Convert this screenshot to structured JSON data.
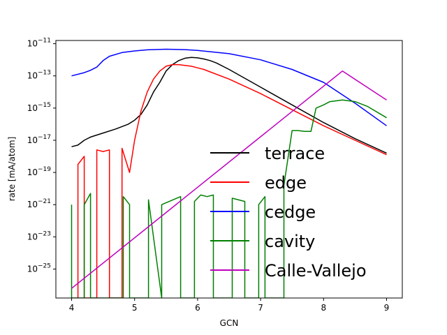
{
  "chart_data": {
    "type": "line",
    "title": "",
    "xlabel": "GCN",
    "ylabel": "rate [mA/atom]",
    "xlim": [
      3.75,
      9.25
    ],
    "ylim_log10": [
      -26.8,
      -10.8
    ],
    "y_scale": "log",
    "grid": false,
    "legend_position": "center-right",
    "x_ticks": [
      {
        "value": 4,
        "label": "4"
      },
      {
        "value": 5,
        "label": "5"
      },
      {
        "value": 6,
        "label": "6"
      },
      {
        "value": 7,
        "label": "7"
      },
      {
        "value": 8,
        "label": "8"
      },
      {
        "value": 9,
        "label": "9"
      }
    ],
    "y_ticks": [
      {
        "exp": -11,
        "label": "10",
        "sup": "−11"
      },
      {
        "exp": -13,
        "label": "10",
        "sup": "−13"
      },
      {
        "exp": -15,
        "label": "10",
        "sup": "−15"
      },
      {
        "exp": -17,
        "label": "10",
        "sup": "−17"
      },
      {
        "exp": -19,
        "label": "10",
        "sup": "−19"
      },
      {
        "exp": -21,
        "label": "10",
        "sup": "−21"
      },
      {
        "exp": -23,
        "label": "10",
        "sup": "−23"
      },
      {
        "exp": -25,
        "label": "10",
        "sup": "−25"
      }
    ],
    "series": [
      {
        "name": "terrace",
        "color": "#000000",
        "points_log10": [
          [
            4.0,
            -17.4
          ],
          [
            4.1,
            -17.3
          ],
          [
            4.2,
            -17.0
          ],
          [
            4.3,
            -16.8
          ],
          [
            4.5,
            -16.55
          ],
          [
            4.7,
            -16.3
          ],
          [
            4.9,
            -16.0
          ],
          [
            5.0,
            -15.75
          ],
          [
            5.1,
            -15.4
          ],
          [
            5.2,
            -14.8
          ],
          [
            5.3,
            -14.0
          ],
          [
            5.4,
            -13.4
          ],
          [
            5.5,
            -12.7
          ],
          [
            5.6,
            -12.3
          ],
          [
            5.7,
            -12.05
          ],
          [
            5.8,
            -11.9
          ],
          [
            5.9,
            -11.85
          ],
          [
            6.0,
            -11.88
          ],
          [
            6.1,
            -11.95
          ],
          [
            6.2,
            -12.05
          ],
          [
            6.3,
            -12.2
          ],
          [
            6.5,
            -12.6
          ],
          [
            7.0,
            -13.7
          ],
          [
            7.5,
            -14.8
          ],
          [
            8.0,
            -15.9
          ],
          [
            8.5,
            -16.9
          ],
          [
            9.0,
            -17.8
          ]
        ]
      },
      {
        "name": "edge",
        "color": "#ff0000",
        "points_log10": [
          [
            4.1,
            -26.8
          ],
          [
            4.1,
            -18.5
          ],
          [
            4.2,
            -18.0
          ],
          [
            4.2,
            -26.8
          ],
          [
            4.4,
            -26.8
          ],
          [
            4.4,
            -17.6
          ],
          [
            4.5,
            -17.7
          ],
          [
            4.6,
            -17.6
          ],
          [
            4.6,
            -26.8
          ],
          [
            4.8,
            -26.8
          ],
          [
            4.8,
            -17.5
          ],
          [
            4.92,
            -19.0
          ],
          [
            5.0,
            -17.0
          ],
          [
            5.1,
            -15.2
          ],
          [
            5.2,
            -14.0
          ],
          [
            5.3,
            -13.2
          ],
          [
            5.4,
            -12.7
          ],
          [
            5.5,
            -12.4
          ],
          [
            5.6,
            -12.3
          ],
          [
            5.7,
            -12.3
          ],
          [
            5.8,
            -12.35
          ],
          [
            5.9,
            -12.4
          ],
          [
            6.0,
            -12.5
          ],
          [
            6.1,
            -12.6
          ],
          [
            6.2,
            -12.75
          ],
          [
            6.5,
            -13.2
          ],
          [
            7.0,
            -14.1
          ],
          [
            7.5,
            -15.1
          ],
          [
            8.0,
            -16.1
          ],
          [
            8.5,
            -17.0
          ],
          [
            9.0,
            -17.9
          ]
        ]
      },
      {
        "name": "cedge",
        "color": "#0000ff",
        "points_log10": [
          [
            4.0,
            -13.0
          ],
          [
            4.2,
            -12.8
          ],
          [
            4.3,
            -12.65
          ],
          [
            4.4,
            -12.45
          ],
          [
            4.5,
            -12.05
          ],
          [
            4.6,
            -11.78
          ],
          [
            4.8,
            -11.55
          ],
          [
            5.0,
            -11.45
          ],
          [
            5.2,
            -11.38
          ],
          [
            5.5,
            -11.34
          ],
          [
            5.8,
            -11.37
          ],
          [
            6.0,
            -11.42
          ],
          [
            6.5,
            -11.62
          ],
          [
            7.0,
            -12.0
          ],
          [
            7.5,
            -12.6
          ],
          [
            8.0,
            -13.4
          ],
          [
            8.5,
            -14.7
          ],
          [
            9.0,
            -16.1
          ]
        ]
      },
      {
        "name": "cavity",
        "color": "#008000",
        "points_log10": [
          [
            4.0,
            -21.0
          ],
          [
            4.0,
            -26.8
          ],
          [
            4.2,
            -26.8
          ],
          [
            4.2,
            -21.0
          ],
          [
            4.3,
            -20.3
          ],
          [
            4.3,
            -26.8
          ],
          [
            4.82,
            -26.8
          ],
          [
            4.82,
            -20.5
          ],
          [
            4.92,
            -21.0
          ],
          [
            4.92,
            -26.8
          ],
          [
            5.22,
            -26.8
          ],
          [
            5.22,
            -20.7
          ],
          [
            5.43,
            -26.8
          ],
          [
            5.43,
            -21.0
          ],
          [
            5.73,
            -20.5
          ],
          [
            5.73,
            -26.8
          ],
          [
            5.95,
            -26.8
          ],
          [
            5.95,
            -20.8
          ],
          [
            6.05,
            -20.4
          ],
          [
            6.15,
            -20.5
          ],
          [
            6.25,
            -20.4
          ],
          [
            6.25,
            -26.8
          ],
          [
            6.55,
            -26.8
          ],
          [
            6.55,
            -20.6
          ],
          [
            6.75,
            -20.8
          ],
          [
            6.75,
            -26.8
          ],
          [
            6.97,
            -26.8
          ],
          [
            6.97,
            -21.0
          ],
          [
            7.07,
            -20.5
          ],
          [
            7.07,
            -26.8
          ],
          [
            7.37,
            -26.8
          ],
          [
            7.37,
            -19.8
          ],
          [
            7.5,
            -16.4
          ],
          [
            7.6,
            -16.4
          ],
          [
            7.7,
            -16.45
          ],
          [
            7.8,
            -16.45
          ],
          [
            7.88,
            -15.0
          ],
          [
            8.0,
            -14.8
          ],
          [
            8.1,
            -14.6
          ],
          [
            8.2,
            -14.55
          ],
          [
            8.3,
            -14.5
          ],
          [
            8.5,
            -14.6
          ],
          [
            8.7,
            -14.9
          ],
          [
            9.0,
            -15.6
          ]
        ]
      },
      {
        "name": "Calle-Vallejo",
        "color": "#bf00bf",
        "points_log10": [
          [
            4.0,
            -26.2
          ],
          [
            8.3,
            -12.7
          ],
          [
            9.0,
            -14.5
          ]
        ]
      }
    ]
  }
}
